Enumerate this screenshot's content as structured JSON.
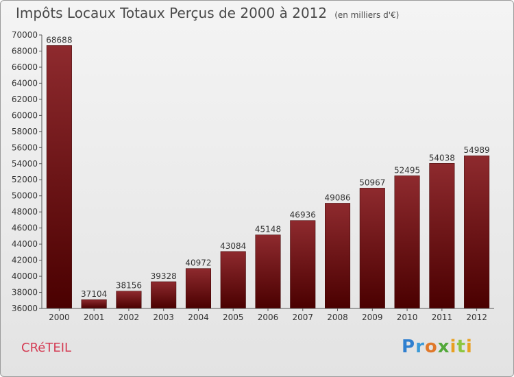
{
  "chart_data": {
    "type": "bar",
    "title": "Impôts Locaux Totaux Perçus de 2000 à 2012",
    "subtitle": "(en milliers d'€)",
    "categories": [
      "2000",
      "2001",
      "2002",
      "2003",
      "2004",
      "2005",
      "2006",
      "2007",
      "2008",
      "2009",
      "2010",
      "2011",
      "2012"
    ],
    "values": [
      68688,
      37104,
      38156,
      39328,
      40972,
      43084,
      45148,
      46936,
      49086,
      50967,
      52495,
      54038,
      54989
    ],
    "ylim": [
      36000,
      70000
    ],
    "yticks": [
      36000,
      38000,
      40000,
      42000,
      44000,
      46000,
      48000,
      50000,
      52000,
      54000,
      56000,
      58000,
      60000,
      62000,
      64000,
      66000,
      68000,
      70000
    ],
    "xlabel": "",
    "ylabel": "",
    "grid": false,
    "colors": {
      "bar_top": "#8e2a2e",
      "bar_bottom": "#4a0000",
      "axis": "#555555",
      "text": "#333333"
    }
  },
  "footer": {
    "town": "CRéTEIL",
    "logo_letters": [
      "P",
      "r",
      "o",
      "x",
      "i",
      "t",
      "i"
    ]
  }
}
